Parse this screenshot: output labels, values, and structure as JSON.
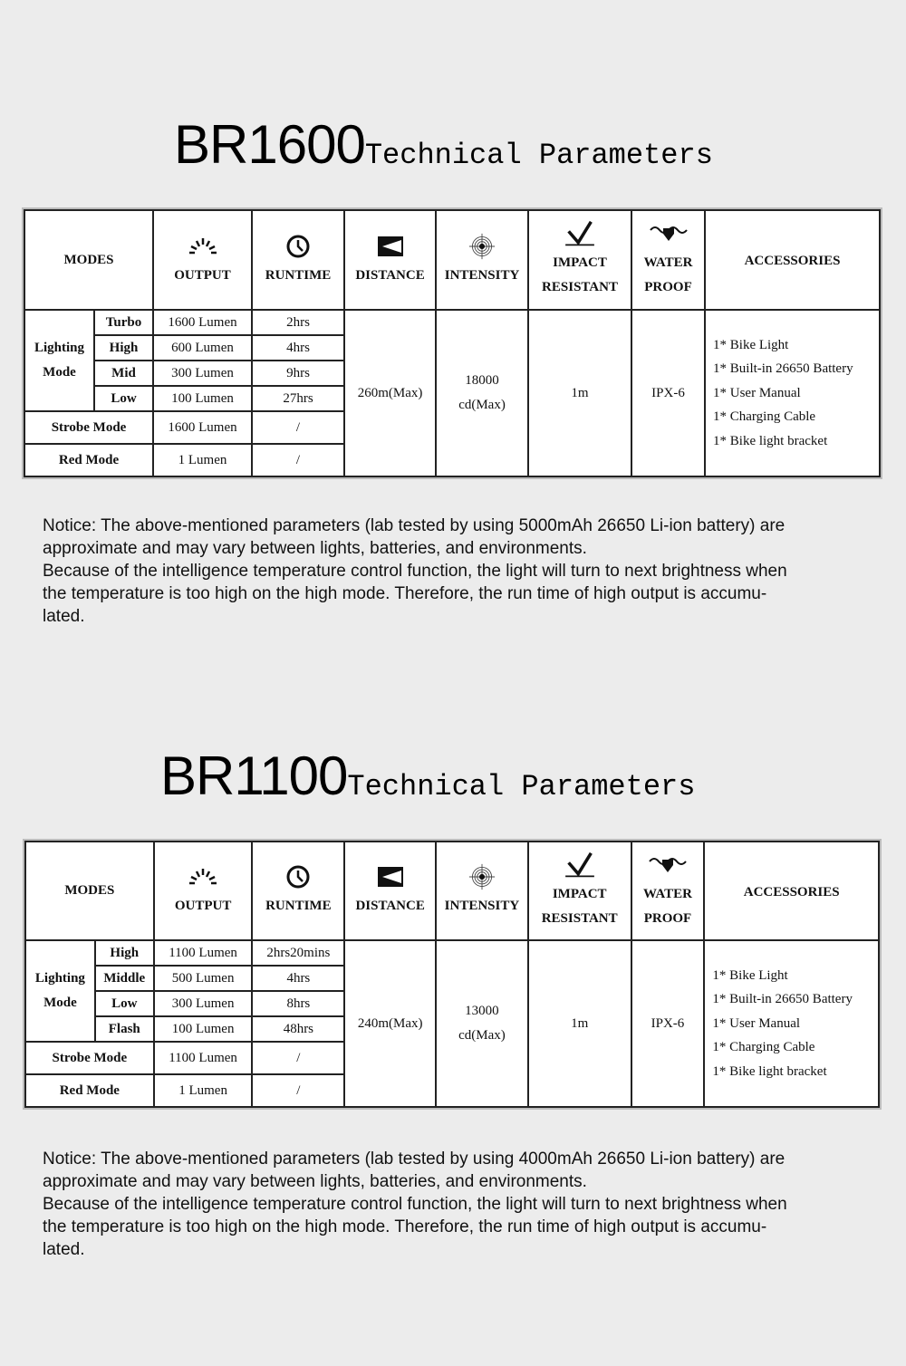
{
  "sections": [
    {
      "model": "BR1600",
      "subtitle": "Technical Parameters",
      "headers": {
        "modes": "MODES",
        "output": "OUTPUT",
        "runtime": "RUNTIME",
        "distance": "DISTANCE",
        "intensity": "INTENSITY",
        "impact": [
          "IMPACT",
          "RESISTANT"
        ],
        "water": [
          "WATER",
          "PROOF"
        ],
        "accessories": "ACCESSORIES"
      },
      "lighting_mode_label": [
        "Lighting",
        "Mode"
      ],
      "lighting_rows": [
        {
          "mode": "Turbo",
          "output": "1600 Lumen",
          "runtime": "2hrs"
        },
        {
          "mode": "High",
          "output": "600 Lumen",
          "runtime": "4hrs"
        },
        {
          "mode": "Mid",
          "output": "300 Lumen",
          "runtime": "9hrs"
        },
        {
          "mode": "Low",
          "output": "100 Lumen",
          "runtime": "27hrs"
        }
      ],
      "strobe": {
        "mode": "Strobe Mode",
        "output": "1600 Lumen",
        "runtime": "/"
      },
      "red": {
        "mode": "Red Mode",
        "output": "1 Lumen",
        "runtime": "/"
      },
      "distance": "260m(Max)",
      "intensity": [
        "18000",
        "cd(Max)"
      ],
      "impact": "1m",
      "water": "IPX-6",
      "accessories": [
        "1* Bike Light",
        "1* Built-in 26650 Battery",
        "1* User Manual",
        "1* Charging Cable",
        "1* Bike light bracket"
      ],
      "notice": [
        "Notice: The above-mentioned parameters (lab tested by using 5000mAh 26650 Li-ion battery) are",
        "approximate and may vary between lights, batteries, and environments.",
        "Because of the intelligence temperature control function, the light will turn to next brightness when",
        "the temperature is too high on the high mode. Therefore, the run time of high output is accumu-",
        "lated."
      ]
    },
    {
      "model": "BR1100",
      "subtitle": "Technical Parameters",
      "headers": {
        "modes": "MODES",
        "output": "OUTPUT",
        "runtime": "RUNTIME",
        "distance": "DISTANCE",
        "intensity": "INTENSITY",
        "impact": [
          "IMPACT",
          "RESISTANT"
        ],
        "water": [
          "WATER",
          "PROOF"
        ],
        "accessories": "ACCESSORIES"
      },
      "lighting_mode_label": [
        "Lighting",
        "Mode"
      ],
      "lighting_rows": [
        {
          "mode": "High",
          "output": "1100 Lumen",
          "runtime": "2hrs20mins"
        },
        {
          "mode": "Middle",
          "output": "500 Lumen",
          "runtime": "4hrs"
        },
        {
          "mode": "Low",
          "output": "300 Lumen",
          "runtime": "8hrs"
        },
        {
          "mode": "Flash",
          "output": "100 Lumen",
          "runtime": "48hrs"
        }
      ],
      "strobe": {
        "mode": "Strobe Mode",
        "output": "1100 Lumen",
        "runtime": "/"
      },
      "red": {
        "mode": "Red Mode",
        "output": "1 Lumen",
        "runtime": "/"
      },
      "distance": "240m(Max)",
      "intensity": [
        "13000",
        "cd(Max)"
      ],
      "impact": "1m",
      "water": "IPX-6",
      "accessories": [
        "1* Bike Light",
        "1* Built-in 26650 Battery",
        "1* User Manual",
        "1* Charging Cable",
        "1* Bike light bracket"
      ],
      "notice": [
        "Notice: The above-mentioned parameters (lab tested by using 4000mAh 26650 Li-ion battery) are",
        "approximate and may vary between lights, batteries, and environments.",
        "Because of the intelligence temperature control function, the light will turn to next brightness when",
        "the temperature is too high on the high mode. Therefore, the run time of high output is accumu-",
        "lated."
      ]
    }
  ],
  "icons": [
    "output-burst-icon",
    "runtime-clock-icon",
    "distance-beam-icon",
    "intensity-target-icon",
    "impact-check-icon",
    "waterproof-drop-icon"
  ]
}
